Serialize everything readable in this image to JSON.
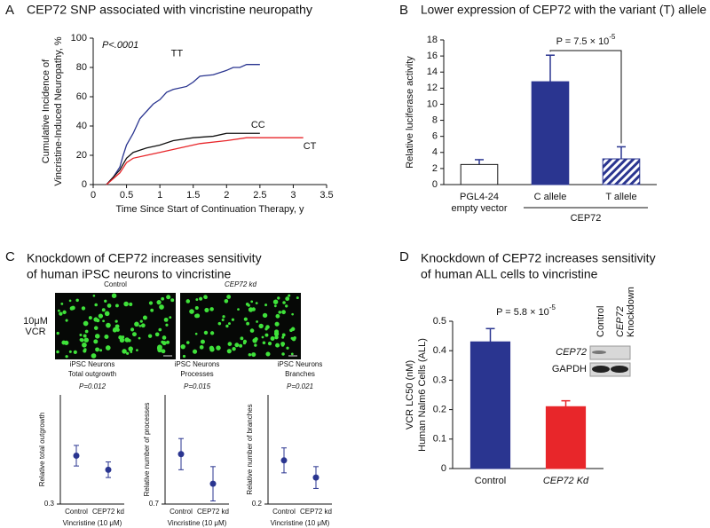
{
  "chart_data": [
    {
      "panel": "A",
      "type": "line",
      "title": "CEP72 SNP associated with vincristine neuropathy",
      "annotation": "P<.0001",
      "xlabel": "Time Since Start of Continuation Therapy, y",
      "ylabel": [
        "Cumulative Incidence of",
        "Vincristine-Induced Neuropathy, %"
      ],
      "xlim": [
        0,
        3.5
      ],
      "xticks": [
        0,
        0.5,
        1,
        1.5,
        2,
        2.5,
        3,
        3.5
      ],
      "ylim": [
        0,
        100
      ],
      "yticks": [
        0,
        20,
        40,
        60,
        80,
        100
      ],
      "series": [
        {
          "name": "TT",
          "color": "#2a3590",
          "x": [
            0.2,
            0.3,
            0.4,
            0.45,
            0.5,
            0.6,
            0.7,
            0.8,
            0.9,
            1.0,
            1.1,
            1.2,
            1.4,
            1.5,
            1.6,
            1.8,
            2.0,
            2.1,
            2.2,
            2.3,
            2.5
          ],
          "values": [
            0,
            5,
            12,
            20,
            27,
            35,
            45,
            50,
            55,
            58,
            63,
            65,
            67,
            70,
            74,
            75,
            78,
            80,
            80,
            82,
            82
          ]
        },
        {
          "name": "CC",
          "color": "#111111",
          "x": [
            0.2,
            0.4,
            0.5,
            0.6,
            0.8,
            1.0,
            1.2,
            1.5,
            1.8,
            2.0,
            2.3,
            2.5
          ],
          "values": [
            0,
            10,
            18,
            22,
            25,
            27,
            30,
            32,
            33,
            35,
            35,
            35
          ]
        },
        {
          "name": "CT",
          "color": "#e8262a",
          "x": [
            0.2,
            0.4,
            0.5,
            0.6,
            0.8,
            1.0,
            1.3,
            1.6,
            2.0,
            2.3,
            3.15
          ],
          "values": [
            0,
            8,
            15,
            18,
            20,
            22,
            25,
            28,
            30,
            32,
            32
          ]
        }
      ]
    },
    {
      "panel": "B",
      "type": "bar",
      "title": "Lower expression of CEP72 with the variant (T) allele",
      "annotation": {
        "text": "P = 7.5 × 10",
        "sup": "-5"
      },
      "ylabel": [
        "Relative luciferase activity"
      ],
      "categories": [
        [
          "PGL4-24",
          "empty vector"
        ],
        [
          "C allele"
        ],
        [
          "T allele"
        ]
      ],
      "group_label": "CEP72",
      "values": [
        2.5,
        12.8,
        3.2
      ],
      "errors": [
        0.6,
        3.3,
        1.5
      ],
      "fills": [
        "#ffffff",
        "#2a3590",
        "#2a3590"
      ],
      "hatched": [
        false,
        false,
        true
      ],
      "ylim": [
        0,
        18
      ],
      "yticks": [
        0,
        2,
        4,
        6,
        8,
        10,
        12,
        14,
        16,
        18
      ]
    },
    {
      "type": "dot",
      "title": [
        "iPSC Neurons",
        "Total outgrowth"
      ],
      "annotation": "P=0.012",
      "ylabel": "Relative total outgrowth",
      "categories": [
        "Control",
        "CEP72 kd"
      ],
      "xlabel": "Vincristine (10 μM)",
      "values": [
        0.61,
        0.52
      ],
      "errors": [
        0.066,
        0.05
      ],
      "color": "#2a3590",
      "ylim": [
        0.3,
        1.0
      ],
      "yticks": [
        0.3
      ]
    },
    {
      "type": "dot",
      "title": [
        "iPSC Neurons",
        "Processes"
      ],
      "annotation": "P=0.015",
      "ylabel": "Relative number of processes",
      "categories": [
        "Control",
        "CEP72 kd"
      ],
      "xlabel": "Vincristine (10 μM)",
      "values": [
        1.02,
        0.83
      ],
      "errors": [
        0.1,
        0.11
      ],
      "color": "#2a3590",
      "ylim": [
        0.7,
        1.4
      ],
      "yticks": [
        0.7
      ]
    },
    {
      "type": "dot",
      "title": [
        "iPSC Neurons",
        "Branches"
      ],
      "annotation": "P=0.021",
      "ylabel": "Relative number of branches",
      "categories": [
        "Control",
        "CEP72 kd"
      ],
      "xlabel": "Vincristine (10 μM)",
      "values": [
        0.48,
        0.37
      ],
      "errors": [
        0.08,
        0.07
      ],
      "color": "#2a3590",
      "ylim": [
        0.2,
        0.9
      ],
      "yticks": [
        0.2
      ]
    },
    {
      "panel": "D",
      "type": "bar",
      "title": [
        "Knockdown of CEP72 increases sensitivity",
        "of human ALL cells to vincristine"
      ],
      "annotation": {
        "text": "P = 5.8 × 10",
        "sup": "-5"
      },
      "ylabel": [
        "VCR LC50 (nM)",
        "Human Nalm6 Cells (ALL)"
      ],
      "categories": [
        [
          "Control"
        ],
        [
          "CEP72 Kd"
        ]
      ],
      "values": [
        0.43,
        0.21
      ],
      "errors": [
        0.045,
        0.02
      ],
      "fills": [
        "#2a3590",
        "#e8262a"
      ],
      "hatched": [
        false,
        false
      ],
      "ylim": [
        0,
        0.5
      ],
      "yticks": [
        0,
        0.1,
        0.2,
        0.3,
        0.4,
        0.5
      ],
      "inset": {
        "columns": [
          [
            "Control"
          ],
          [
            "CEP72",
            "Knockdown"
          ]
        ],
        "rows": [
          "CEP72",
          "GAPDH"
        ]
      }
    }
  ],
  "panel_c": {
    "panel": "C",
    "title": [
      "Knockdown of CEP72 increases sensitivity",
      "of human iPSC neurons to vincristine"
    ],
    "images": [
      "Control",
      "CEP72 kd"
    ],
    "row_label": [
      "10μM",
      "VCR"
    ]
  }
}
